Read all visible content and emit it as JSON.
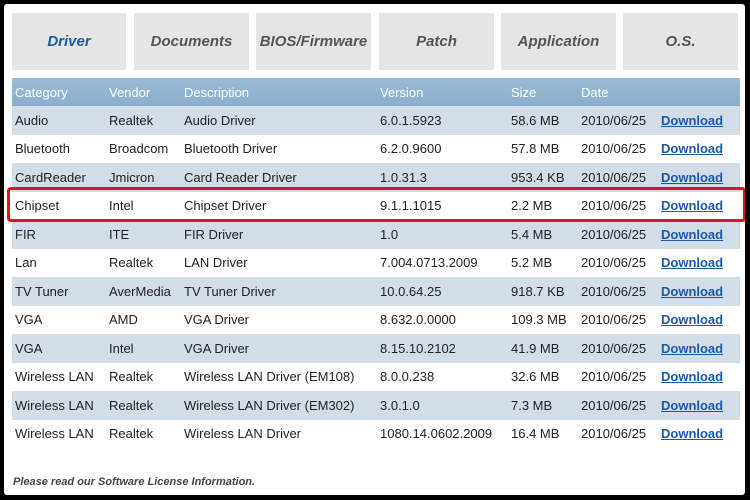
{
  "tabs": [
    {
      "label": "Driver",
      "active": true
    },
    {
      "label": "Documents",
      "active": false
    },
    {
      "label": "BIOS/Firmware",
      "active": false
    },
    {
      "label": "Patch",
      "active": false
    },
    {
      "label": "Application",
      "active": false
    },
    {
      "label": "O.S.",
      "active": false
    }
  ],
  "table": {
    "headers": {
      "category": "Category",
      "vendor": "Vendor",
      "description": "Description",
      "version": "Version",
      "size": "Size",
      "date": "Date"
    },
    "rows": [
      {
        "category": "Audio",
        "vendor": "Realtek",
        "description": "Audio Driver",
        "version": "6.0.1.5923",
        "size": "58.6 MB",
        "date": "2010/06/25",
        "link": "Download"
      },
      {
        "category": "Bluetooth",
        "vendor": "Broadcom",
        "description": "Bluetooth Driver",
        "version": "6.2.0.9600",
        "size": "57.8 MB",
        "date": "2010/06/25",
        "link": "Download"
      },
      {
        "category": "CardReader",
        "vendor": "Jmicron",
        "description": "Card Reader Driver",
        "version": "1.0.31.3",
        "size": "953.4 KB",
        "date": "2010/06/25",
        "link": "Download"
      },
      {
        "category": "Chipset",
        "vendor": "Intel",
        "description": "Chipset Driver",
        "version": "9.1.1.1015",
        "size": "2.2 MB",
        "date": "2010/06/25",
        "link": "Download"
      },
      {
        "category": "FIR",
        "vendor": "ITE",
        "description": "FIR Driver",
        "version": "1.0",
        "size": "5.4 MB",
        "date": "2010/06/25",
        "link": "Download"
      },
      {
        "category": "Lan",
        "vendor": "Realtek",
        "description": "LAN Driver",
        "version": "7.004.0713.2009",
        "size": "5.2 MB",
        "date": "2010/06/25",
        "link": "Download"
      },
      {
        "category": "TV Tuner",
        "vendor": "AverMedia",
        "description": "TV Tuner Driver",
        "version": "10.0.64.25",
        "size": "918.7 KB",
        "date": "2010/06/25",
        "link": "Download"
      },
      {
        "category": "VGA",
        "vendor": "AMD",
        "description": "VGA Driver",
        "version": "8.632.0.0000",
        "size": "109.3 MB",
        "date": "2010/06/25",
        "link": "Download"
      },
      {
        "category": "VGA",
        "vendor": "Intel",
        "description": "VGA Driver",
        "version": "8.15.10.2102",
        "size": "41.9 MB",
        "date": "2010/06/25",
        "link": "Download"
      },
      {
        "category": "Wireless LAN",
        "vendor": "Realtek",
        "description": "Wireless LAN Driver (EM108)",
        "version": "8.0.0.238",
        "size": "32.6 MB",
        "date": "2010/06/25",
        "link": "Download"
      },
      {
        "category": "Wireless LAN",
        "vendor": "Realtek",
        "description": "Wireless LAN Driver (EM302)",
        "version": "3.0.1.0",
        "size": "7.3 MB",
        "date": "2010/06/25",
        "link": "Download"
      },
      {
        "category": "Wireless LAN",
        "vendor": "Realtek",
        "description": "Wireless LAN Driver",
        "version": "1080.14.0602.2009",
        "size": "16.4 MB",
        "date": "2010/06/25",
        "link": "Download"
      }
    ],
    "highlighted_row": 3
  },
  "footer": {
    "license_text": "Please read our Software License Information."
  },
  "colors": {
    "active_tab": "#1a5aa8",
    "header_bg": "#8aaecd",
    "odd_row": "#d2dde7",
    "highlight_border": "#e0141e",
    "link": "#1a5aa8"
  }
}
